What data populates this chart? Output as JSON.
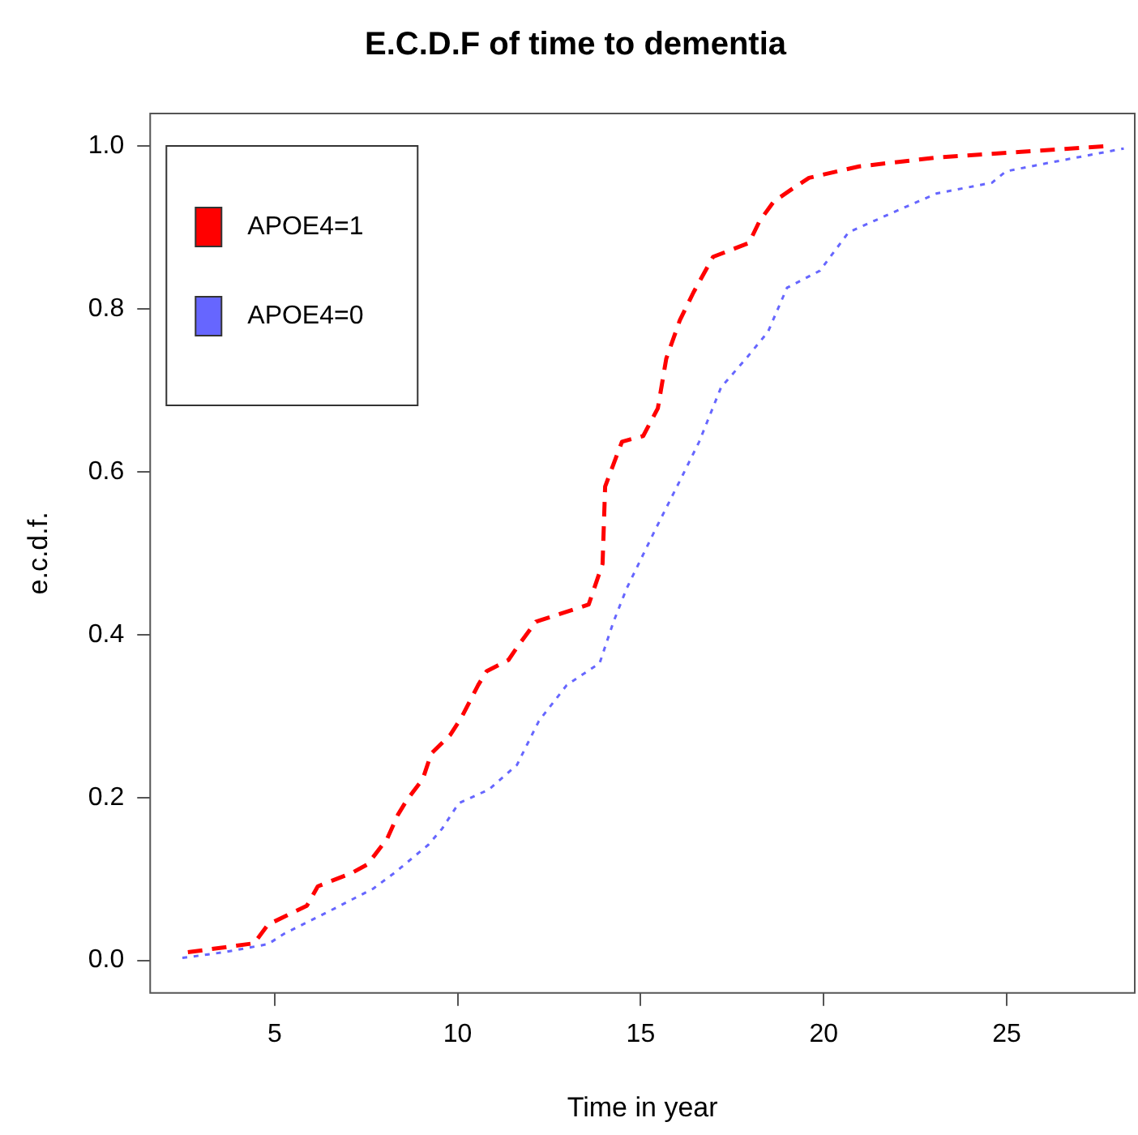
{
  "chart_data": {
    "type": "line",
    "title": "E.C.D.F of time to dementia",
    "xlabel": "Time in year",
    "ylabel": "e.c.d.f.",
    "xlim": [
      1.6,
      28.5
    ],
    "xticks": [
      5,
      10,
      15,
      20,
      25
    ],
    "ylim": [
      -0.04,
      1.04
    ],
    "yticks": [
      {
        "value": 0,
        "label": "0.0"
      },
      {
        "value": 0.2,
        "label": "0.2"
      },
      {
        "value": 0.4,
        "label": "0.4"
      },
      {
        "value": 0.6,
        "label": "0.6"
      },
      {
        "value": 0.8,
        "label": "0.8"
      },
      {
        "value": 1,
        "label": "1.0"
      }
    ],
    "grid": false,
    "legend": "top left",
    "marker": "none",
    "series": [
      {
        "name": "APOE4=1",
        "color": "#ff0000",
        "line_style": "dashed",
        "x": [
          2.63,
          4.44,
          4.82,
          5.88,
          6.18,
          7.09,
          7.54,
          8.07,
          8.37,
          8.6,
          9.05,
          9.28,
          9.8,
          10.1,
          10.56,
          10.79,
          11.39,
          11.6,
          12.14,
          13.58,
          13.96,
          14.03,
          14.49,
          15.07,
          15.47,
          15.7,
          16.07,
          16.44,
          16.98,
          17.96,
          18.25,
          18.64,
          19.16,
          19.6,
          20.97,
          23.1,
          25.4,
          27.76
        ],
        "values": [
          0.01,
          0.021,
          0.044,
          0.067,
          0.091,
          0.107,
          0.118,
          0.149,
          0.179,
          0.196,
          0.223,
          0.254,
          0.277,
          0.298,
          0.338,
          0.355,
          0.369,
          0.383,
          0.416,
          0.437,
          0.487,
          0.582,
          0.637,
          0.644,
          0.678,
          0.739,
          0.786,
          0.82,
          0.864,
          0.881,
          0.908,
          0.932,
          0.948,
          0.961,
          0.975,
          0.986,
          0.993,
          1.0
        ]
      },
      {
        "name": "APOE4=0",
        "color": "#6666ff",
        "line_style": "dotted",
        "x": [
          2.48,
          3.61,
          4.82,
          5.27,
          6.03,
          6.78,
          7.69,
          8.29,
          9.2,
          9.58,
          10.03,
          10.86,
          11.62,
          12.22,
          12.98,
          13.88,
          14.26,
          14.62,
          15.39,
          16.15,
          16.6,
          17.2,
          17.88,
          18.48,
          19.0,
          19.9,
          20.68,
          21.87,
          23.1,
          24.6,
          24.98,
          26.1,
          28.2
        ],
        "values": [
          0.003,
          0.01,
          0.02,
          0.033,
          0.05,
          0.067,
          0.088,
          0.108,
          0.142,
          0.162,
          0.193,
          0.21,
          0.24,
          0.294,
          0.338,
          0.365,
          0.416,
          0.457,
          0.528,
          0.596,
          0.637,
          0.704,
          0.739,
          0.772,
          0.826,
          0.847,
          0.894,
          0.918,
          0.942,
          0.955,
          0.969,
          0.979,
          0.997
        ]
      }
    ]
  }
}
